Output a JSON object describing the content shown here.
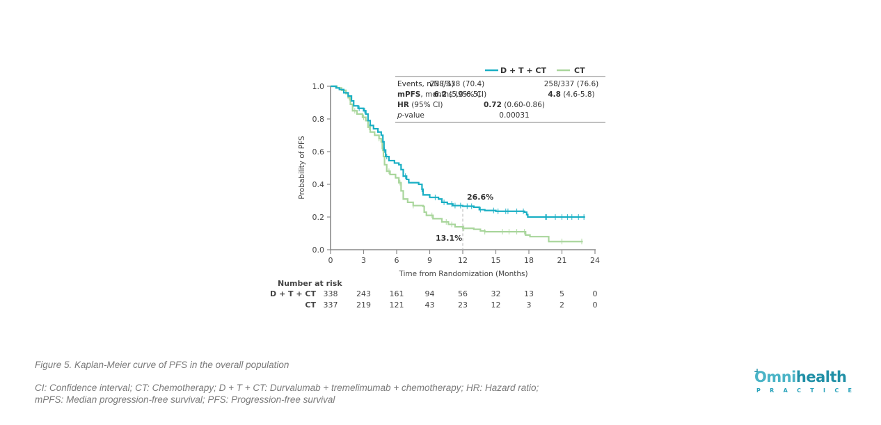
{
  "chart_data": {
    "type": "line",
    "subtype": "kaplan-meier",
    "xlabel": "Time from Randomization (Months)",
    "ylabel": "Probability of PFS",
    "xlim": [
      0,
      24
    ],
    "ylim": [
      0,
      1.0
    ],
    "x_ticks": [
      0,
      3,
      6,
      9,
      12,
      15,
      18,
      21,
      24
    ],
    "x_tick_labels": [
      "0",
      "3",
      "6",
      "9",
      "12",
      "15",
      "18",
      "21",
      "24"
    ],
    "y_ticks": [
      0.0,
      0.2,
      0.4,
      0.6,
      0.8,
      1.0
    ],
    "y_tick_labels": [
      "0.0",
      "0.2",
      "0.4",
      "0.6",
      "0.8",
      "1.0"
    ],
    "grid": false,
    "legend_position": "top-right",
    "series": [
      {
        "name": "D + T + CT",
        "color": "#19afc4",
        "steps": [
          [
            0,
            1.0
          ],
          [
            0.5,
            0.99
          ],
          [
            0.8,
            0.98
          ],
          [
            1.2,
            0.96
          ],
          [
            1.6,
            0.94
          ],
          [
            1.9,
            0.91
          ],
          [
            2.1,
            0.88
          ],
          [
            2.5,
            0.865
          ],
          [
            3.0,
            0.85
          ],
          [
            3.2,
            0.83
          ],
          [
            3.4,
            0.79
          ],
          [
            3.6,
            0.76
          ],
          [
            3.9,
            0.74
          ],
          [
            4.3,
            0.72
          ],
          [
            4.6,
            0.7
          ],
          [
            4.75,
            0.66
          ],
          [
            4.85,
            0.61
          ],
          [
            5.0,
            0.57
          ],
          [
            5.3,
            0.545
          ],
          [
            5.8,
            0.53
          ],
          [
            6.2,
            0.52
          ],
          [
            6.4,
            0.49
          ],
          [
            6.6,
            0.45
          ],
          [
            6.9,
            0.43
          ],
          [
            7.1,
            0.41
          ],
          [
            8.0,
            0.4
          ],
          [
            8.3,
            0.37
          ],
          [
            8.4,
            0.335
          ],
          [
            9.0,
            0.32
          ],
          [
            9.8,
            0.31
          ],
          [
            10.1,
            0.29
          ],
          [
            10.6,
            0.28
          ],
          [
            11.1,
            0.27
          ],
          [
            12.0,
            0.266
          ],
          [
            13.0,
            0.26
          ],
          [
            13.5,
            0.245
          ],
          [
            14.0,
            0.24
          ],
          [
            15.0,
            0.235
          ],
          [
            17.6,
            0.23
          ],
          [
            17.8,
            0.215
          ],
          [
            17.9,
            0.2
          ],
          [
            23.1,
            0.2
          ]
        ],
        "censor_times": [
          2.6,
          3.1,
          4.9,
          5.1,
          6.8,
          8.3,
          9.5,
          10.3,
          11.0,
          11.3,
          11.8,
          12.4,
          12.8,
          13.6,
          14.8,
          15.2,
          15.9,
          16.1,
          16.9,
          17.5,
          19.5,
          19.6,
          20.4,
          21.0,
          21.5,
          21.9,
          22.5,
          23.0
        ]
      },
      {
        "name": "CT",
        "color": "#a9d69c",
        "steps": [
          [
            0,
            1.0
          ],
          [
            0.6,
            0.99
          ],
          [
            1.0,
            0.975
          ],
          [
            1.4,
            0.955
          ],
          [
            1.6,
            0.93
          ],
          [
            1.8,
            0.89
          ],
          [
            2.0,
            0.85
          ],
          [
            2.4,
            0.83
          ],
          [
            2.9,
            0.81
          ],
          [
            3.2,
            0.79
          ],
          [
            3.4,
            0.75
          ],
          [
            3.6,
            0.72
          ],
          [
            4.0,
            0.7
          ],
          [
            4.4,
            0.68
          ],
          [
            4.6,
            0.66
          ],
          [
            4.7,
            0.62
          ],
          [
            4.8,
            0.57
          ],
          [
            4.9,
            0.52
          ],
          [
            5.1,
            0.48
          ],
          [
            5.4,
            0.46
          ],
          [
            5.9,
            0.44
          ],
          [
            6.2,
            0.41
          ],
          [
            6.4,
            0.36
          ],
          [
            6.6,
            0.31
          ],
          [
            7.0,
            0.29
          ],
          [
            7.5,
            0.27
          ],
          [
            8.4,
            0.265
          ],
          [
            8.5,
            0.23
          ],
          [
            8.7,
            0.21
          ],
          [
            9.3,
            0.19
          ],
          [
            10.1,
            0.17
          ],
          [
            10.7,
            0.155
          ],
          [
            11.3,
            0.14
          ],
          [
            12.0,
            0.131
          ],
          [
            13.0,
            0.125
          ],
          [
            13.6,
            0.115
          ],
          [
            14.0,
            0.11
          ],
          [
            17.5,
            0.11
          ],
          [
            17.7,
            0.09
          ],
          [
            18.1,
            0.08
          ],
          [
            19.8,
            0.05
          ],
          [
            22.9,
            0.05
          ]
        ],
        "censor_times": [
          1.7,
          2.2,
          3.0,
          3.5,
          4.4,
          4.7,
          5.3,
          6.3,
          7.5,
          9.2,
          10.5,
          11.0,
          12.1,
          14.0,
          15.6,
          16.2,
          16.9,
          17.6,
          21.0,
          22.8
        ]
      }
    ],
    "annotations": [
      {
        "text": "26.6%",
        "x": 12,
        "y": 0.266,
        "series": "D + T + CT",
        "color": "#19afc4"
      },
      {
        "text": "13.1%",
        "x": 12,
        "y": 0.131,
        "series": "CT",
        "color": "#7fbf6e"
      }
    ],
    "reference_line": {
      "x": 12,
      "style": "dashed"
    },
    "stats_table": {
      "columns": [
        "",
        "D + T + CT",
        "CT"
      ],
      "rows": [
        {
          "label": "Events, n/N (%)",
          "values": [
            "238/338 (70.4)",
            "258/337 (76.6)"
          ]
        },
        {
          "label_bold": "mPFS",
          "label_rest": ", months (95% CI)",
          "values_bold": [
            "6.2",
            "4.8"
          ],
          "values_rest": [
            " (5.0-6.5)",
            " (4.6-5.8)"
          ]
        },
        {
          "label_bold": "HR",
          "label_rest": " (95% CI)",
          "value_bold": "0.72",
          "value_rest": " (0.60-0.86)"
        },
        {
          "label_ital": "p",
          "label_rest": "-value",
          "value": "0.00031"
        }
      ]
    },
    "number_at_risk": {
      "title": "Number at risk",
      "times": [
        0,
        3,
        6,
        9,
        12,
        15,
        18,
        21,
        24
      ],
      "rows": [
        {
          "label": "D + T + CT",
          "values": [
            338,
            243,
            161,
            94,
            56,
            32,
            13,
            5,
            0
          ]
        },
        {
          "label": "CT",
          "values": [
            337,
            219,
            121,
            43,
            23,
            12,
            3,
            2,
            0
          ]
        }
      ]
    }
  },
  "caption": {
    "title": "Figure 5. Kaplan-Meier curve of PFS in the overall population",
    "footnote_line1": "CI: Confidence interval; CT: Chemotherapy; D + T + CT: Durvalumab + tremelimumab + chemotherapy; HR: Hazard ratio;",
    "footnote_line2": "mPFS: Median progression-free survival; PFS: Progression-free survival"
  },
  "logo": {
    "omni": "Omni",
    "health": "health",
    "plus": "+",
    "sub": "PRACTICE"
  }
}
